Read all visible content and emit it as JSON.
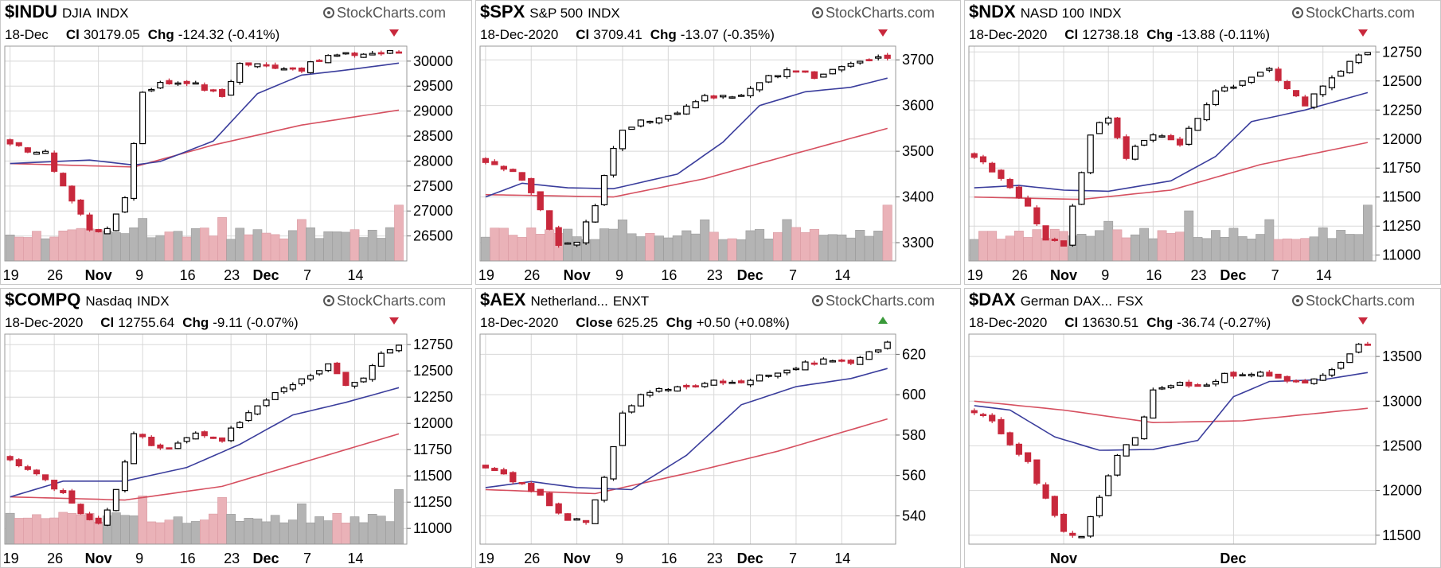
{
  "style": {
    "up_fill": "#ffffff",
    "up_stroke": "#000000",
    "down_color": "#c8283c",
    "ma_short_color": "#3a3d9c",
    "ma_long_color": "#d65060",
    "vol_gray": "#b4b4b4",
    "vol_red": "#eab2b8",
    "grid_color": "#d8d8d8",
    "frame_color": "#c8c8c8"
  },
  "logo_text": "StockCharts.com",
  "charts": [
    {
      "type": "candlestick",
      "symbol": "$INDU",
      "name": "DJIA",
      "exchange": "INDX",
      "date": "18-Dec",
      "close_label": "Cl",
      "close": "30179.05",
      "chg_label": "Chg",
      "chg": "-124.32 (-0.41%)",
      "chg_dir": "down",
      "x_ticks": [
        {
          "label": "19",
          "i": 0
        },
        {
          "label": "26",
          "i": 5
        },
        {
          "label": "Nov",
          "i": 10
        },
        {
          "label": "9",
          "i": 15
        },
        {
          "label": "16",
          "i": 20
        },
        {
          "label": "23",
          "i": 25
        },
        {
          "label": "Dec",
          "i": 29
        },
        {
          "label": "7",
          "i": 34
        },
        {
          "label": "14",
          "i": 39
        }
      ],
      "y_ticks": [
        26500,
        27000,
        27500,
        28000,
        28500,
        29000,
        29500,
        30000
      ],
      "ylim": [
        26000,
        30300
      ],
      "volume_ratio": 0.45,
      "n": 45,
      "anchors": [
        [
          0,
          28300
        ],
        [
          4,
          28150
        ],
        [
          7,
          27200
        ],
        [
          9,
          26650
        ],
        [
          11,
          26600
        ],
        [
          13,
          27300
        ],
        [
          15,
          29400
        ],
        [
          17,
          29550
        ],
        [
          20,
          29600
        ],
        [
          24,
          29300
        ],
        [
          26,
          29950
        ],
        [
          30,
          29900
        ],
        [
          33,
          29850
        ],
        [
          36,
          30100
        ],
        [
          40,
          30150
        ],
        [
          44,
          30190
        ]
      ],
      "ma_short": [
        [
          0,
          27950
        ],
        [
          9,
          28020
        ],
        [
          14,
          27920
        ],
        [
          17,
          27990
        ],
        [
          23,
          28400
        ],
        [
          28,
          29350
        ],
        [
          33,
          29720
        ],
        [
          38,
          29820
        ],
        [
          44,
          29960
        ]
      ],
      "ma_long": [
        [
          0,
          27950
        ],
        [
          14,
          27880
        ],
        [
          23,
          28320
        ],
        [
          33,
          28720
        ],
        [
          44,
          29020
        ]
      ]
    },
    {
      "type": "candlestick",
      "symbol": "$SPX",
      "name": "S&P 500",
      "exchange": "INDX",
      "date": "18-Dec-2020",
      "close_label": "Cl",
      "close": "3709.41",
      "chg_label": "Chg",
      "chg": "-13.07 (-0.35%)",
      "chg_dir": "down",
      "x_ticks": [
        {
          "label": "19",
          "i": 0
        },
        {
          "label": "26",
          "i": 5
        },
        {
          "label": "Nov",
          "i": 10
        },
        {
          "label": "9",
          "i": 15
        },
        {
          "label": "16",
          "i": 20
        },
        {
          "label": "23",
          "i": 25
        },
        {
          "label": "Dec",
          "i": 29
        },
        {
          "label": "7",
          "i": 34
        },
        {
          "label": "14",
          "i": 39
        }
      ],
      "y_ticks": [
        3300,
        3400,
        3500,
        3600,
        3700
      ],
      "ylim": [
        3260,
        3730
      ],
      "volume_ratio": 0.45,
      "n": 45,
      "anchors": [
        [
          0,
          3480
        ],
        [
          3,
          3455
        ],
        [
          5,
          3410
        ],
        [
          8,
          3290
        ],
        [
          10,
          3300
        ],
        [
          12,
          3380
        ],
        [
          14,
          3510
        ],
        [
          15,
          3550
        ],
        [
          18,
          3570
        ],
        [
          21,
          3580
        ],
        [
          24,
          3620
        ],
        [
          28,
          3625
        ],
        [
          30,
          3650
        ],
        [
          33,
          3680
        ],
        [
          36,
          3665
        ],
        [
          39,
          3680
        ],
        [
          42,
          3700
        ],
        [
          44,
          3709
        ]
      ],
      "ma_short": [
        [
          0,
          3400
        ],
        [
          4,
          3430
        ],
        [
          9,
          3420
        ],
        [
          14,
          3418
        ],
        [
          21,
          3450
        ],
        [
          26,
          3520
        ],
        [
          30,
          3600
        ],
        [
          35,
          3630
        ],
        [
          40,
          3640
        ],
        [
          44,
          3660
        ]
      ],
      "ma_long": [
        [
          0,
          3405
        ],
        [
          14,
          3400
        ],
        [
          24,
          3440
        ],
        [
          33,
          3490
        ],
        [
          44,
          3550
        ]
      ]
    },
    {
      "type": "candlestick",
      "symbol": "$NDX",
      "name": "NASD 100",
      "exchange": "INDX",
      "date": "18-Dec-2020",
      "close_label": "Cl",
      "close": "12738.18",
      "chg_label": "Chg",
      "chg": "-13.88 (-0.11%)",
      "chg_dir": "down",
      "x_ticks": [
        {
          "label": "19",
          "i": 0
        },
        {
          "label": "26",
          "i": 5
        },
        {
          "label": "Nov",
          "i": 10
        },
        {
          "label": "9",
          "i": 15
        },
        {
          "label": "16",
          "i": 20
        },
        {
          "label": "23",
          "i": 25
        },
        {
          "label": "Dec",
          "i": 29
        },
        {
          "label": "7",
          "i": 34
        },
        {
          "label": "14",
          "i": 39
        }
      ],
      "y_ticks": [
        11000,
        11250,
        11500,
        11750,
        12000,
        12250,
        12500,
        12750
      ],
      "ylim": [
        10950,
        12800
      ],
      "volume_ratio": 0.45,
      "n": 45,
      "anchors": [
        [
          0,
          11850
        ],
        [
          3,
          11650
        ],
        [
          6,
          11400
        ],
        [
          8,
          11150
        ],
        [
          10,
          11100
        ],
        [
          12,
          11700
        ],
        [
          13,
          12050
        ],
        [
          15,
          12200
        ],
        [
          17,
          11850
        ],
        [
          20,
          12050
        ],
        [
          23,
          11950
        ],
        [
          25,
          12200
        ],
        [
          27,
          12400
        ],
        [
          30,
          12480
        ],
        [
          33,
          12600
        ],
        [
          35,
          12450
        ],
        [
          37,
          12300
        ],
        [
          39,
          12450
        ],
        [
          41,
          12600
        ],
        [
          43,
          12720
        ],
        [
          44,
          12738
        ]
      ],
      "ma_short": [
        [
          0,
          11580
        ],
        [
          5,
          11600
        ],
        [
          10,
          11560
        ],
        [
          15,
          11550
        ],
        [
          22,
          11640
        ],
        [
          27,
          11850
        ],
        [
          31,
          12150
        ],
        [
          37,
          12250
        ],
        [
          44,
          12400
        ]
      ],
      "ma_long": [
        [
          0,
          11500
        ],
        [
          12,
          11480
        ],
        [
          22,
          11560
        ],
        [
          32,
          11780
        ],
        [
          44,
          11970
        ]
      ]
    },
    {
      "type": "candlestick",
      "symbol": "$COMPQ",
      "name": "Nasdaq",
      "exchange": "INDX",
      "date": "18-Dec-2020",
      "close_label": "Cl",
      "close": "12755.64",
      "chg_label": "Chg",
      "chg": "-9.11 (-0.07%)",
      "chg_dir": "down",
      "x_ticks": [
        {
          "label": "19",
          "i": 0
        },
        {
          "label": "26",
          "i": 5
        },
        {
          "label": "Nov",
          "i": 10
        },
        {
          "label": "9",
          "i": 15
        },
        {
          "label": "16",
          "i": 20
        },
        {
          "label": "23",
          "i": 25
        },
        {
          "label": "Dec",
          "i": 29
        },
        {
          "label": "7",
          "i": 34
        },
        {
          "label": "14",
          "i": 39
        }
      ],
      "y_ticks": [
        11000,
        11250,
        11500,
        11750,
        12000,
        12250,
        12500,
        12750
      ],
      "ylim": [
        10850,
        12850
      ],
      "volume_ratio": 0.45,
      "n": 45,
      "anchors": [
        [
          0,
          11650
        ],
        [
          3,
          11500
        ],
        [
          6,
          11350
        ],
        [
          8,
          11150
        ],
        [
          10,
          11050
        ],
        [
          12,
          11350
        ],
        [
          14,
          11900
        ],
        [
          16,
          11800
        ],
        [
          18,
          11750
        ],
        [
          21,
          11900
        ],
        [
          24,
          11850
        ],
        [
          27,
          12100
        ],
        [
          30,
          12300
        ],
        [
          33,
          12400
        ],
        [
          36,
          12550
        ],
        [
          38,
          12350
        ],
        [
          40,
          12450
        ],
        [
          42,
          12650
        ],
        [
          44,
          12756
        ]
      ],
      "ma_short": [
        [
          0,
          11300
        ],
        [
          6,
          11450
        ],
        [
          13,
          11450
        ],
        [
          20,
          11580
        ],
        [
          26,
          11800
        ],
        [
          32,
          12080
        ],
        [
          38,
          12200
        ],
        [
          44,
          12340
        ]
      ],
      "ma_long": [
        [
          0,
          11300
        ],
        [
          13,
          11270
        ],
        [
          24,
          11400
        ],
        [
          34,
          11650
        ],
        [
          44,
          11900
        ]
      ]
    },
    {
      "type": "candlestick",
      "symbol": "$AEX",
      "name": "Netherland...",
      "exchange": "ENXT",
      "date": "18-Dec-2020",
      "close_label": "Close",
      "close": "625.25",
      "chg_label": "Chg",
      "chg": "+0.50 (+0.08%)",
      "chg_dir": "up",
      "x_ticks": [
        {
          "label": "19",
          "i": 0
        },
        {
          "label": "26",
          "i": 5
        },
        {
          "label": "Nov",
          "i": 10
        },
        {
          "label": "9",
          "i": 15
        },
        {
          "label": "16",
          "i": 20
        },
        {
          "label": "23",
          "i": 25
        },
        {
          "label": "Dec",
          "i": 29
        },
        {
          "label": "7",
          "i": 34
        },
        {
          "label": "14",
          "i": 39
        }
      ],
      "y_ticks": [
        540,
        560,
        580,
        600,
        620
      ],
      "ylim": [
        526,
        630
      ],
      "volume_ratio": 0,
      "n": 45,
      "anchors": [
        [
          0,
          563
        ],
        [
          3,
          558
        ],
        [
          6,
          550
        ],
        [
          9,
          537
        ],
        [
          11,
          538
        ],
        [
          13,
          560
        ],
        [
          15,
          590
        ],
        [
          17,
          600
        ],
        [
          20,
          603
        ],
        [
          24,
          606
        ],
        [
          28,
          607
        ],
        [
          31,
          610
        ],
        [
          34,
          614
        ],
        [
          37,
          617
        ],
        [
          40,
          615
        ],
        [
          42,
          620
        ],
        [
          44,
          625
        ]
      ],
      "ma_short": [
        [
          0,
          554
        ],
        [
          5,
          557
        ],
        [
          10,
          554
        ],
        [
          16,
          553
        ],
        [
          22,
          570
        ],
        [
          28,
          595
        ],
        [
          34,
          604
        ],
        [
          40,
          608
        ],
        [
          44,
          613
        ]
      ],
      "ma_long": [
        [
          0,
          553
        ],
        [
          12,
          551
        ],
        [
          22,
          561
        ],
        [
          32,
          572
        ],
        [
          44,
          588
        ]
      ]
    },
    {
      "type": "candlestick",
      "symbol": "$DAX",
      "name": "German DAX...",
      "exchange": "FSX",
      "date": "18-Dec-2020",
      "close_label": "Cl",
      "close": "13630.51",
      "chg_label": "Chg",
      "chg": "-36.74 (-0.27%)",
      "chg_dir": "down",
      "x_ticks": [
        {
          "label": "Nov",
          "i": 10
        },
        {
          "label": "Dec",
          "i": 29
        }
      ],
      "y_ticks": [
        11500,
        12000,
        12500,
        13000,
        13500
      ],
      "ylim": [
        11400,
        13750
      ],
      "volume_ratio": 0,
      "n": 45,
      "anchors": [
        [
          0,
          12900
        ],
        [
          2,
          12800
        ],
        [
          4,
          12500
        ],
        [
          6,
          12300
        ],
        [
          8,
          11900
        ],
        [
          10,
          11550
        ],
        [
          12,
          11500
        ],
        [
          14,
          11900
        ],
        [
          16,
          12400
        ],
        [
          18,
          12600
        ],
        [
          20,
          13100
        ],
        [
          22,
          13200
        ],
        [
          25,
          13150
        ],
        [
          28,
          13300
        ],
        [
          31,
          13320
        ],
        [
          34,
          13250
        ],
        [
          37,
          13200
        ],
        [
          39,
          13280
        ],
        [
          41,
          13450
        ],
        [
          43,
          13650
        ],
        [
          44,
          13630
        ]
      ],
      "ma_short": [
        [
          0,
          12950
        ],
        [
          4,
          12900
        ],
        [
          9,
          12600
        ],
        [
          14,
          12450
        ],
        [
          20,
          12460
        ],
        [
          25,
          12560
        ],
        [
          29,
          13050
        ],
        [
          33,
          13220
        ],
        [
          39,
          13240
        ],
        [
          44,
          13320
        ]
      ],
      "ma_long": [
        [
          0,
          13000
        ],
        [
          10,
          12900
        ],
        [
          20,
          12760
        ],
        [
          30,
          12780
        ],
        [
          44,
          12920
        ]
      ]
    }
  ]
}
